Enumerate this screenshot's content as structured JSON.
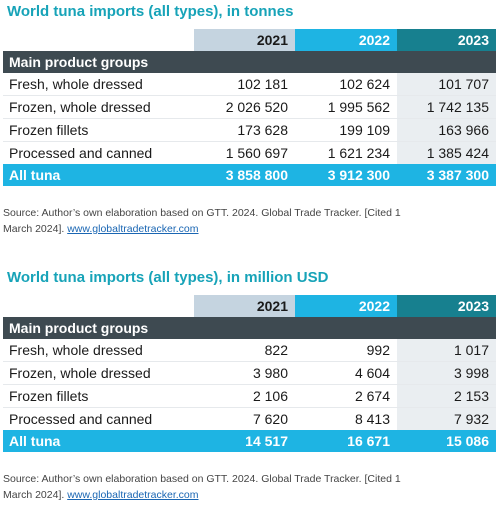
{
  "tables": [
    {
      "title": "World tuna imports (all types), in tonnes",
      "years": [
        "2021",
        "2022",
        "2023"
      ],
      "group_label": "Main product groups",
      "rows": [
        {
          "label": "Fresh, whole dressed",
          "values": [
            "102 181",
            "102 624",
            "101 707"
          ]
        },
        {
          "label": "Frozen, whole dressed",
          "values": [
            "2 026 520",
            "1 995 562",
            "1 742 135"
          ]
        },
        {
          "label": "Frozen fillets",
          "values": [
            "173 628",
            "199 109",
            "163 966"
          ]
        },
        {
          "label": "Processed and canned",
          "values": [
            "1 560 697",
            "1 621 234",
            "1 385 424"
          ]
        }
      ],
      "total": {
        "label": "All tuna",
        "values": [
          "3 858 800",
          "3 912 300",
          "3 387 300"
        ]
      },
      "source_text": "Source: Author’s own elaboration based on GTT. 2024. Global Trade Tracker. [Cited 1 March 2024]. ",
      "source_link": "www.globaltradetracker.com"
    },
    {
      "title": "World tuna imports (all types), in million USD",
      "years": [
        "2021",
        "2022",
        "2023"
      ],
      "group_label": "Main product groups",
      "rows": [
        {
          "label": "Fresh, whole dressed",
          "values": [
            "822",
            "992",
            "1 017"
          ]
        },
        {
          "label": "Frozen, whole dressed",
          "values": [
            "3 980",
            "4 604",
            "3 998"
          ]
        },
        {
          "label": "Frozen fillets",
          "values": [
            "2 106",
            "2 674",
            "2 153"
          ]
        },
        {
          "label": "Processed and canned",
          "values": [
            "7 620",
            "8 413",
            "7 932"
          ]
        }
      ],
      "total": {
        "label": "All tuna",
        "values": [
          "14 517",
          "16 671",
          "15 086"
        ]
      },
      "source_text": "Source: Author’s own elaboration based on GTT. 2024. Global Trade Tracker. [Cited 1 March 2024]. ",
      "source_link": "www.globaltradetracker.com"
    }
  ],
  "colors": {
    "title": "#17a3b8",
    "year_2021": "#c5d4e0",
    "year_2022": "#1eb4e3",
    "year_2023": "#17808f",
    "group_header": "#3e4a51",
    "total_row": "#1eb4e3"
  }
}
